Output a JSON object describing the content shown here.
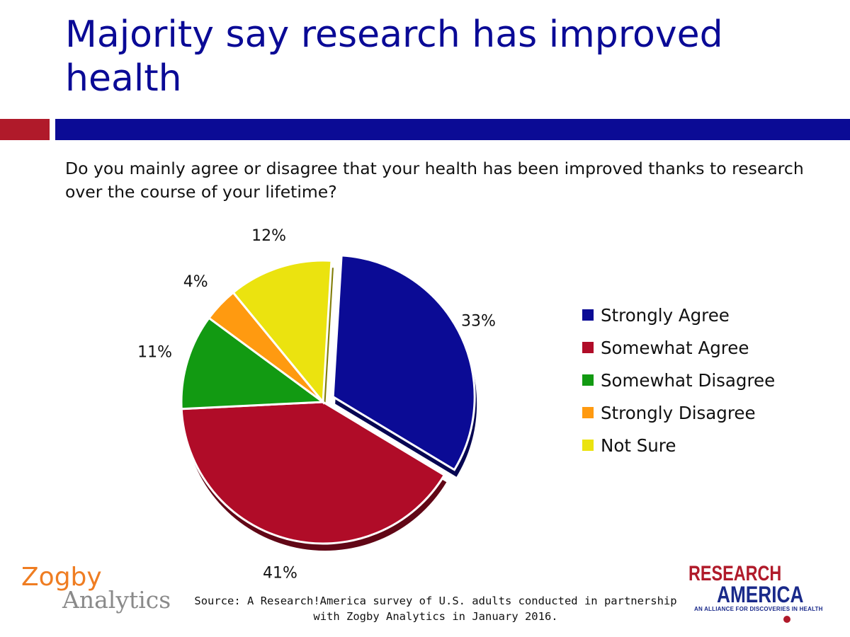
{
  "title": "Majority say research has improved health",
  "question": "Do you mainly agree or disagree that your health has been improved thanks to research over the course of your lifetime?",
  "source": {
    "line1": "Source: A Research!America survey of U.S. adults conducted in partnership",
    "line2": "with Zogby Analytics in January 2016."
  },
  "logos": {
    "zogby_line1": "Zogby",
    "zogby_line2": "Analytics",
    "ra_line1": "RESEARCH",
    "ra_line2": "AMERICA",
    "ra_tagline": "AN ALLIANCE FOR DISCOVERIES IN HEALTH"
  },
  "colors": {
    "title": "#0a0a96",
    "bar_red": "#b01a2a",
    "bar_blue": "#0b0b95"
  },
  "chart_data": {
    "type": "pie",
    "title": "",
    "slices": [
      {
        "label": "Strongly Agree",
        "value": 33,
        "display": "33%",
        "color": "#0b0b95",
        "exploded": true
      },
      {
        "label": "Somewhat Agree",
        "value": 41,
        "display": "41%",
        "color": "#b00c28"
      },
      {
        "label": "Somewhat Disagree",
        "value": 11,
        "display": "11%",
        "color": "#129a12"
      },
      {
        "label": "Strongly Disagree",
        "value": 4,
        "display": "4%",
        "color": "#ff9a10"
      },
      {
        "label": "Not Sure",
        "value": 12,
        "display": "12%",
        "color": "#ebe30f"
      }
    ],
    "legend_position": "right"
  }
}
